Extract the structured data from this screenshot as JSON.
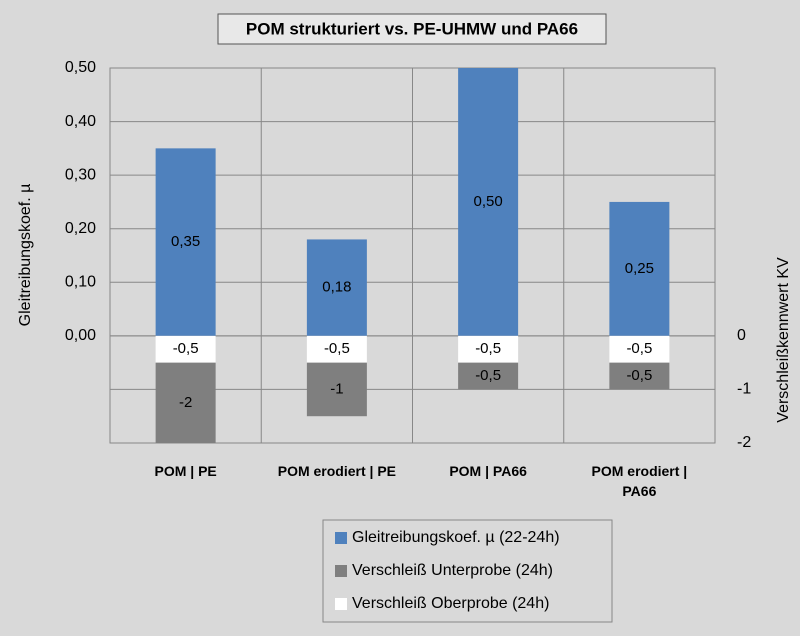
{
  "chart_data": {
    "type": "bar",
    "title": "POM strukturiert vs. PE-UHMW und PA66",
    "y_label": "Gleitreibungskoef. µ",
    "y2_label": "Verschleißkennwert KV",
    "categories": [
      "POM | PE",
      "POM erodiert | PE",
      "POM | PA66",
      "POM erodiert | PA66"
    ],
    "series": [
      {
        "name": "Gleitreibungskoef. µ (22-24h)",
        "color": "#4f81bd",
        "values": [
          0.35,
          0.18,
          0.5,
          0.25
        ],
        "value_labels": [
          "0,35",
          "0,18",
          "0,50",
          "0,25"
        ]
      },
      {
        "name": "Verschleiß Unterprobe (24h)",
        "color": "#7f7f7f",
        "axis": "y2",
        "values": [
          -2,
          -1,
          -0.5,
          -0.5
        ],
        "value_labels": [
          "-2",
          "-1",
          "-0,5",
          "-0,5"
        ]
      },
      {
        "name": "Verschleiß Oberprobe (24h)",
        "color": "#ffffff",
        "axis": "y2",
        "values": [
          -0.5,
          -0.5,
          -0.5,
          -0.5
        ],
        "value_labels": [
          "-0,5",
          "-0,5",
          "-0,5",
          "-0,5"
        ]
      }
    ],
    "ylim": [
      -0.2,
      0.5
    ],
    "yticks": [
      {
        "value": 0,
        "label": "0,00"
      },
      {
        "value": 0.1,
        "label": "0,10"
      },
      {
        "value": 0.2,
        "label": "0,20"
      },
      {
        "value": 0.3,
        "label": "0,30"
      },
      {
        "value": 0.4,
        "label": "0,40"
      },
      {
        "value": 0.5,
        "label": "0,50"
      }
    ],
    "y2lim": [
      -2,
      5
    ],
    "y2ticks": [
      -2,
      -1,
      0
    ],
    "grid": true
  }
}
